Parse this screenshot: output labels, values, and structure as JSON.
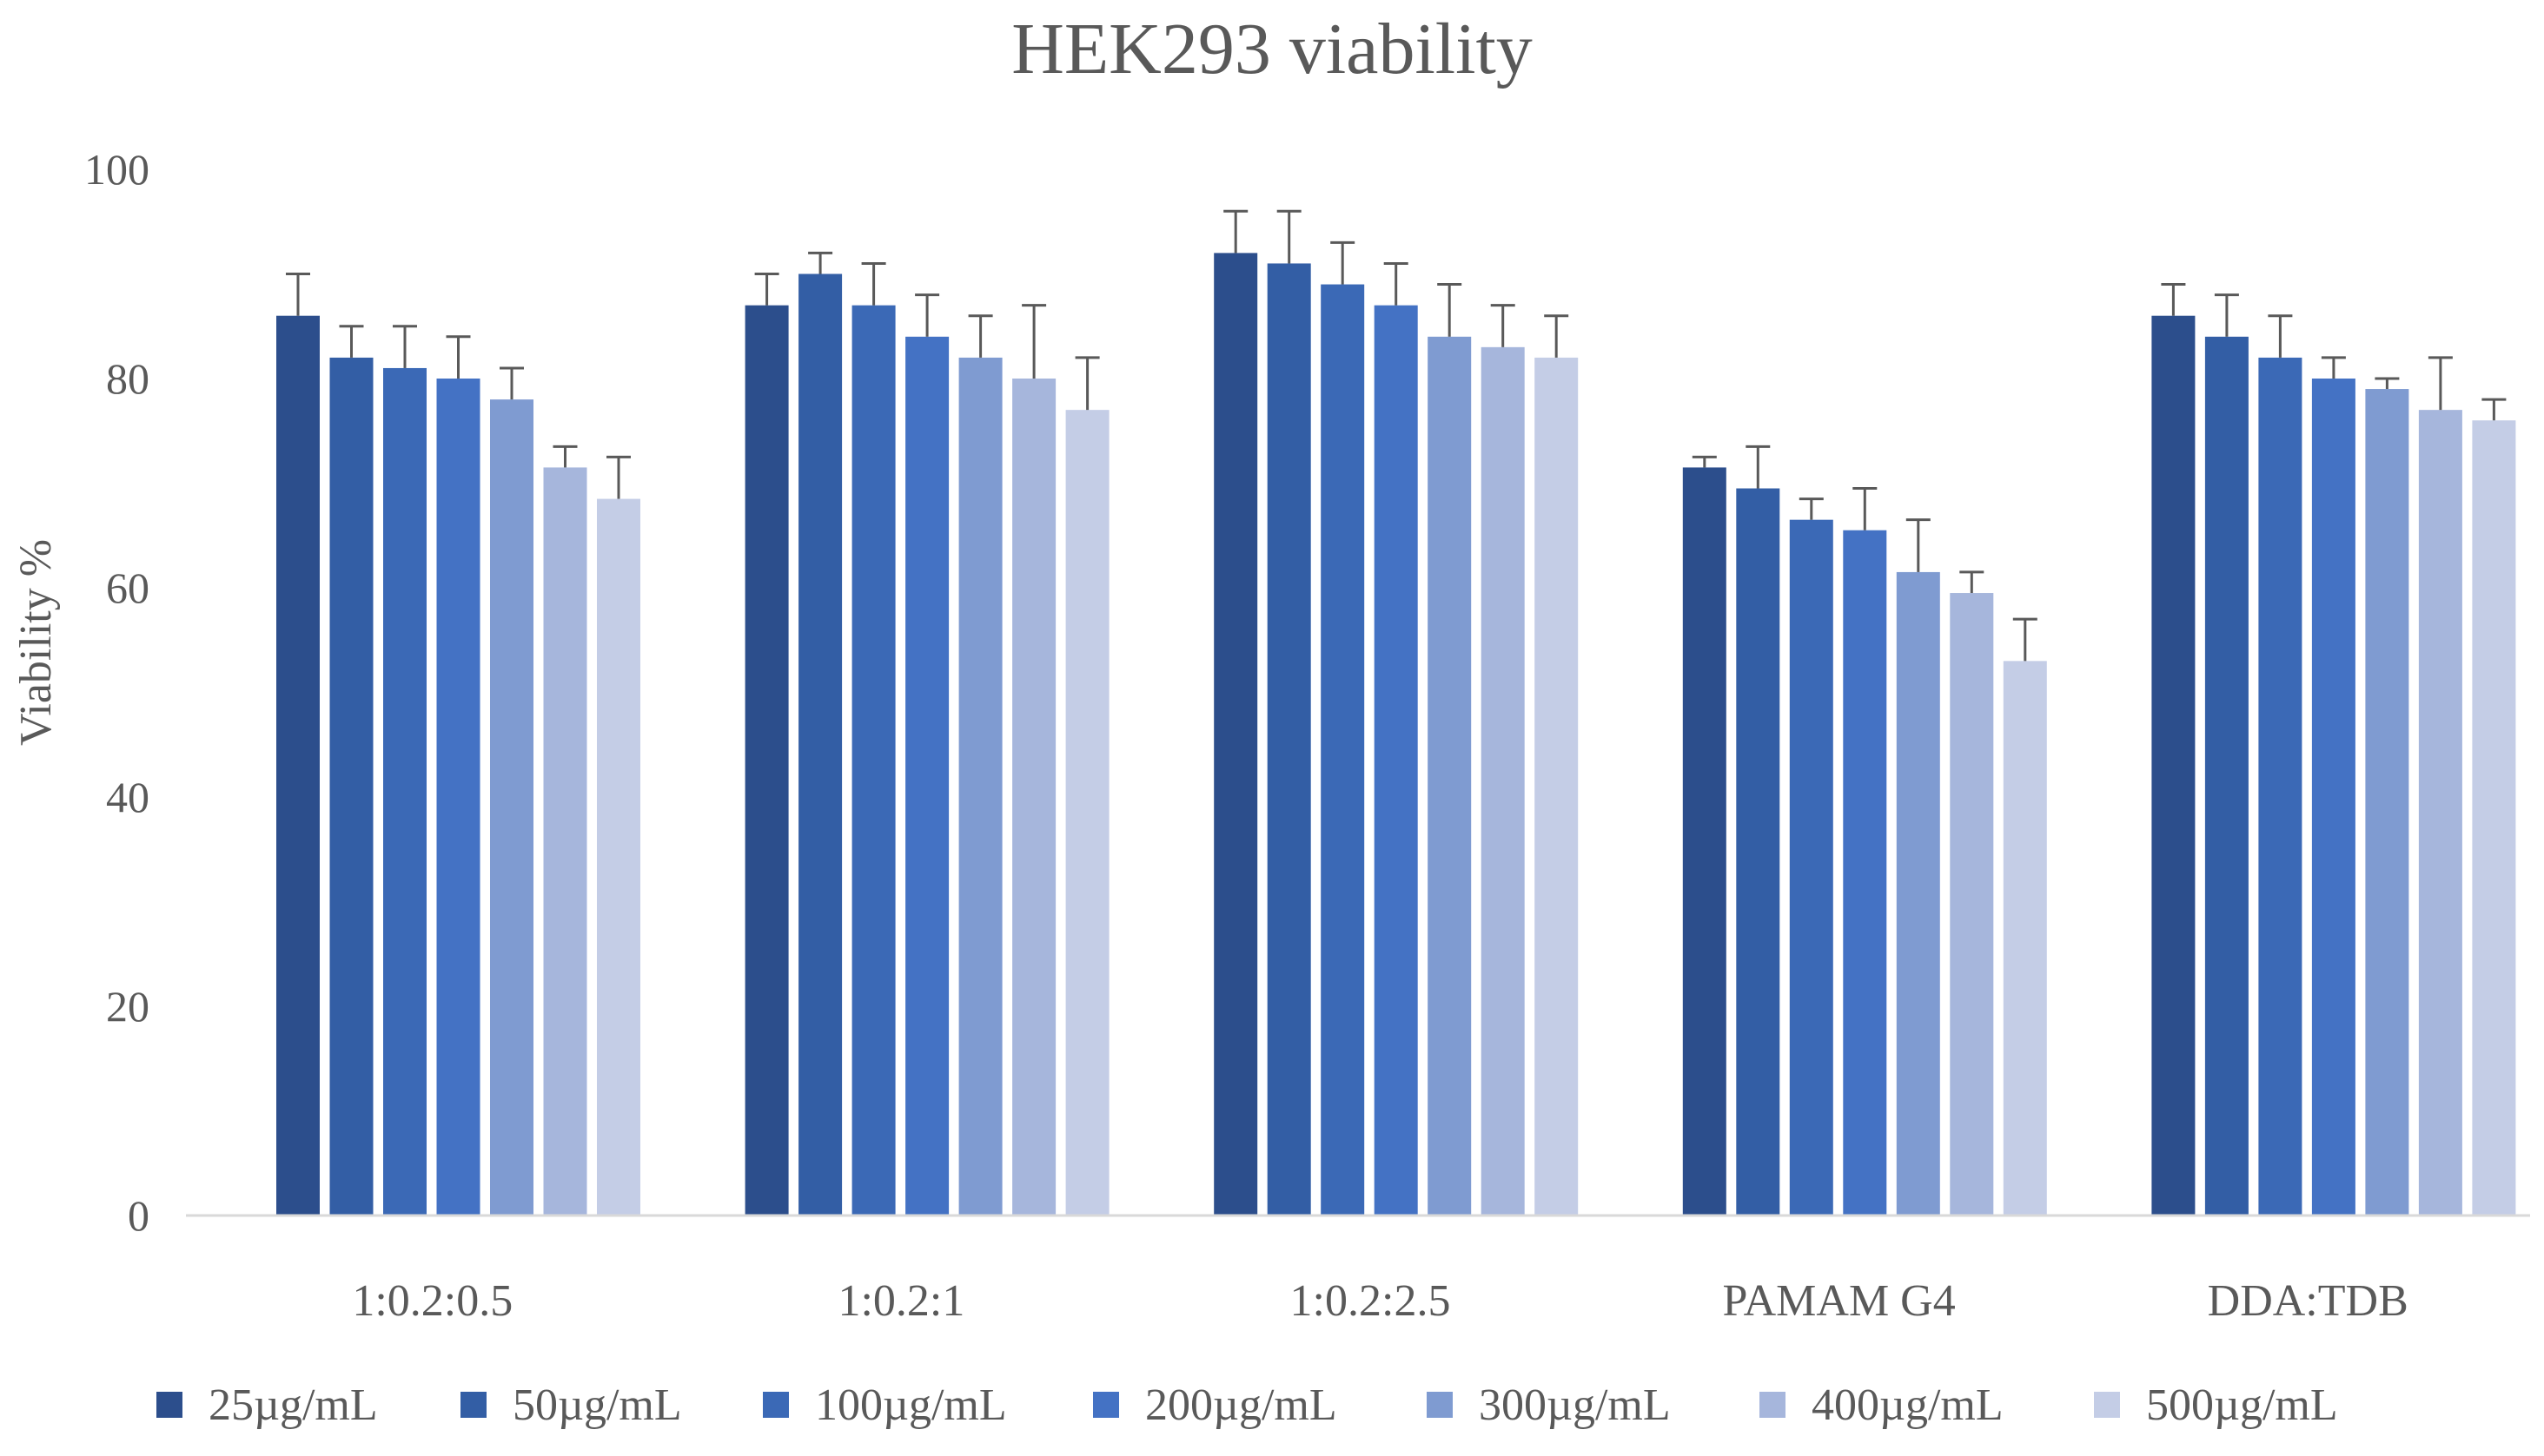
{
  "chart_data": {
    "type": "bar",
    "title": "HEK293 viability",
    "xlabel": "",
    "ylabel": "Viability %",
    "ylim": [
      0,
      100
    ],
    "yticks": [
      0,
      20,
      40,
      60,
      80,
      100
    ],
    "grid": false,
    "legend_position": "bottom",
    "categories": [
      "1:0.2:0.5",
      "1:0.2:1",
      "1:0.2:2.5",
      "PAMAM G4",
      "DDA:TDB"
    ],
    "series": [
      {
        "name": "25µg/mL",
        "color": "#2c4e8c",
        "values": [
          86,
          87,
          92,
          71.5,
          86
        ],
        "errors": [
          4,
          3,
          4,
          1,
          3
        ]
      },
      {
        "name": "50µg/mL",
        "color": "#335ea5",
        "values": [
          82,
          90,
          91,
          69.5,
          84
        ],
        "errors": [
          3,
          2,
          5,
          4,
          4
        ]
      },
      {
        "name": "100µg/mL",
        "color": "#3b69b6",
        "values": [
          81,
          87,
          89,
          66.5,
          82
        ],
        "errors": [
          4,
          4,
          4,
          2,
          4
        ]
      },
      {
        "name": "200µg/mL",
        "color": "#4472c4",
        "values": [
          80,
          84,
          87,
          65.5,
          80
        ],
        "errors": [
          4,
          4,
          4,
          4,
          2
        ]
      },
      {
        "name": "300µg/mL",
        "color": "#7f9bd1",
        "values": [
          78,
          82,
          84,
          61.5,
          79
        ],
        "errors": [
          3,
          4,
          5,
          5,
          1
        ]
      },
      {
        "name": "400µg/mL",
        "color": "#a6b6dc",
        "values": [
          71.5,
          80,
          83,
          59.5,
          77
        ],
        "errors": [
          2,
          7,
          4,
          2,
          5
        ]
      },
      {
        "name": "500µg/mL",
        "color": "#c4cde6",
        "values": [
          68.5,
          77,
          82,
          53,
          76
        ],
        "errors": [
          4,
          5,
          4,
          4,
          2
        ]
      }
    ]
  }
}
